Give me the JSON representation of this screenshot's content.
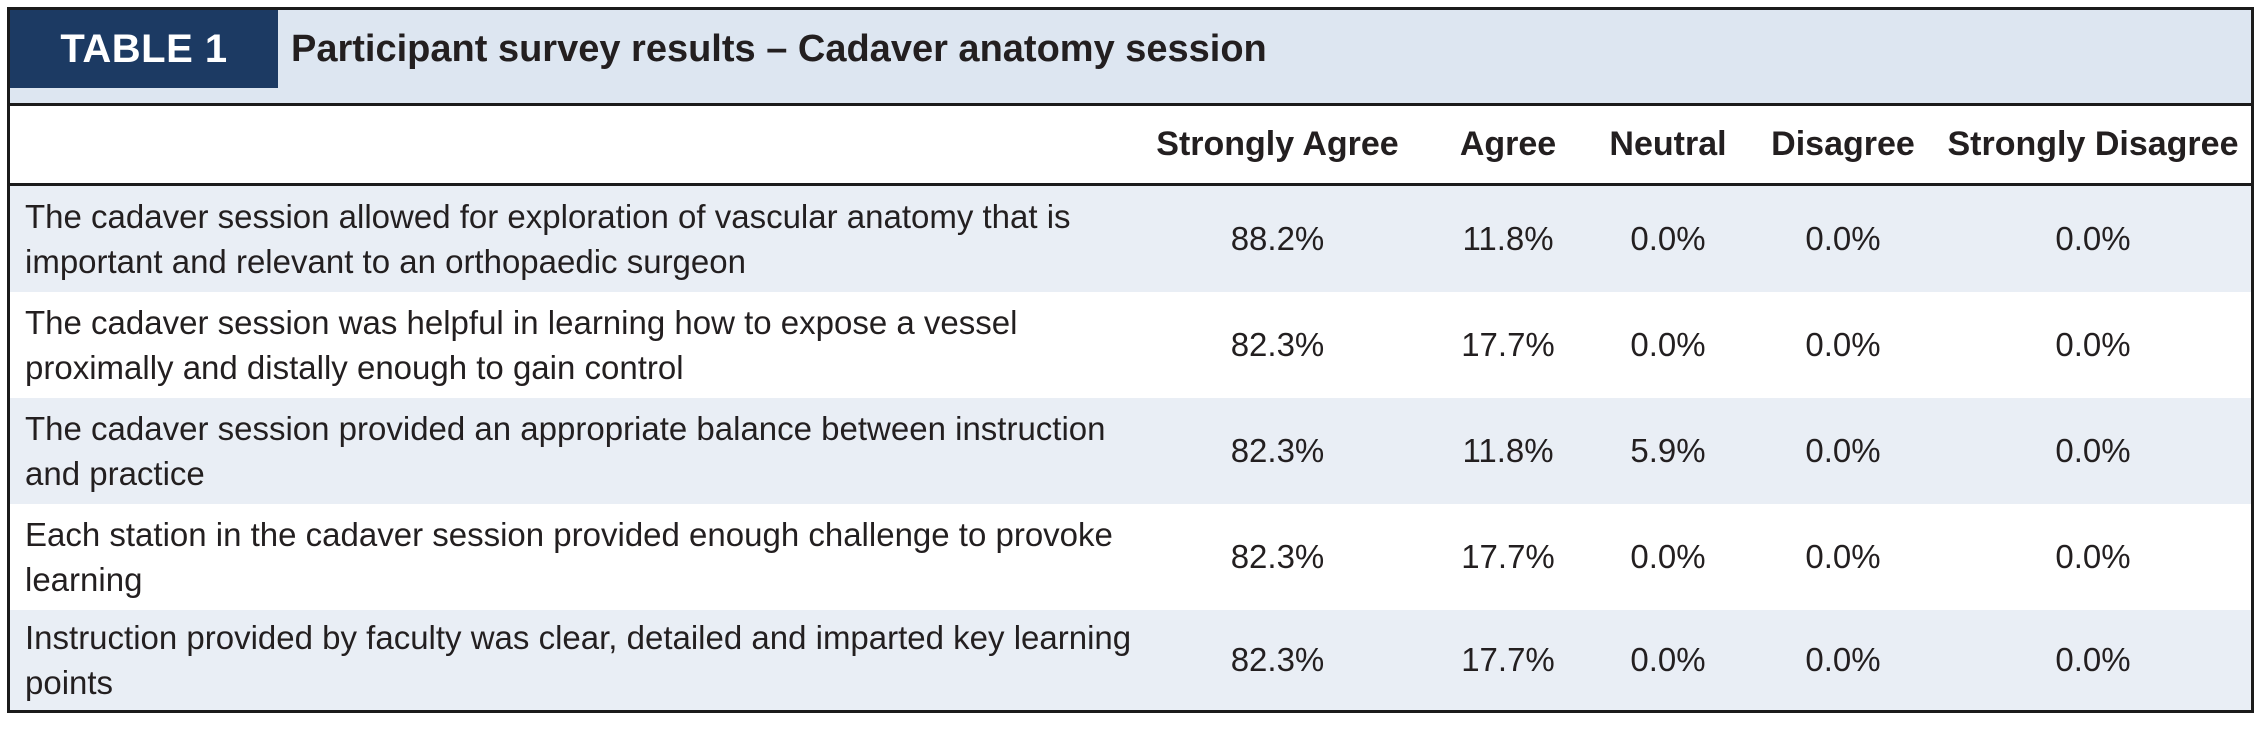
{
  "table": {
    "tag": "TABLE 1",
    "title": "Participant survey results – Cadaver anatomy session",
    "columns": [
      "Strongly Agree",
      "Agree",
      "Neutral",
      "Disagree",
      "Strongly Disagree"
    ],
    "rows": [
      {
        "statement": "The cadaver session allowed for exploration of vascular anatomy that is important and relevant to an orthopaedic surgeon",
        "values": [
          "88.2%",
          "11.8%",
          "0.0%",
          "0.0%",
          "0.0%"
        ]
      },
      {
        "statement": "The cadaver session was helpful in learning how to expose a vessel proximally and distally enough to gain control",
        "values": [
          "82.3%",
          "17.7%",
          "0.0%",
          "0.0%",
          "0.0%"
        ]
      },
      {
        "statement": "The cadaver session provided an appropriate balance between instruction and practice",
        "values": [
          "82.3%",
          "11.8%",
          "5.9%",
          "0.0%",
          "0.0%"
        ]
      },
      {
        "statement": "Each station in the cadaver session provided enough challenge to provoke learning",
        "values": [
          "82.3%",
          "17.7%",
          "0.0%",
          "0.0%",
          "0.0%"
        ]
      },
      {
        "statement": "Instruction provided by faculty was clear, detailed and imparted key learning points",
        "values": [
          "82.3%",
          "17.7%",
          "0.0%",
          "0.0%",
          "0.0%"
        ]
      }
    ],
    "colors": {
      "tag_background": "#1c3a63",
      "header_background": "#dde6f1",
      "row_shade": "#e9eef5",
      "border": "#1b1b1b"
    }
  }
}
